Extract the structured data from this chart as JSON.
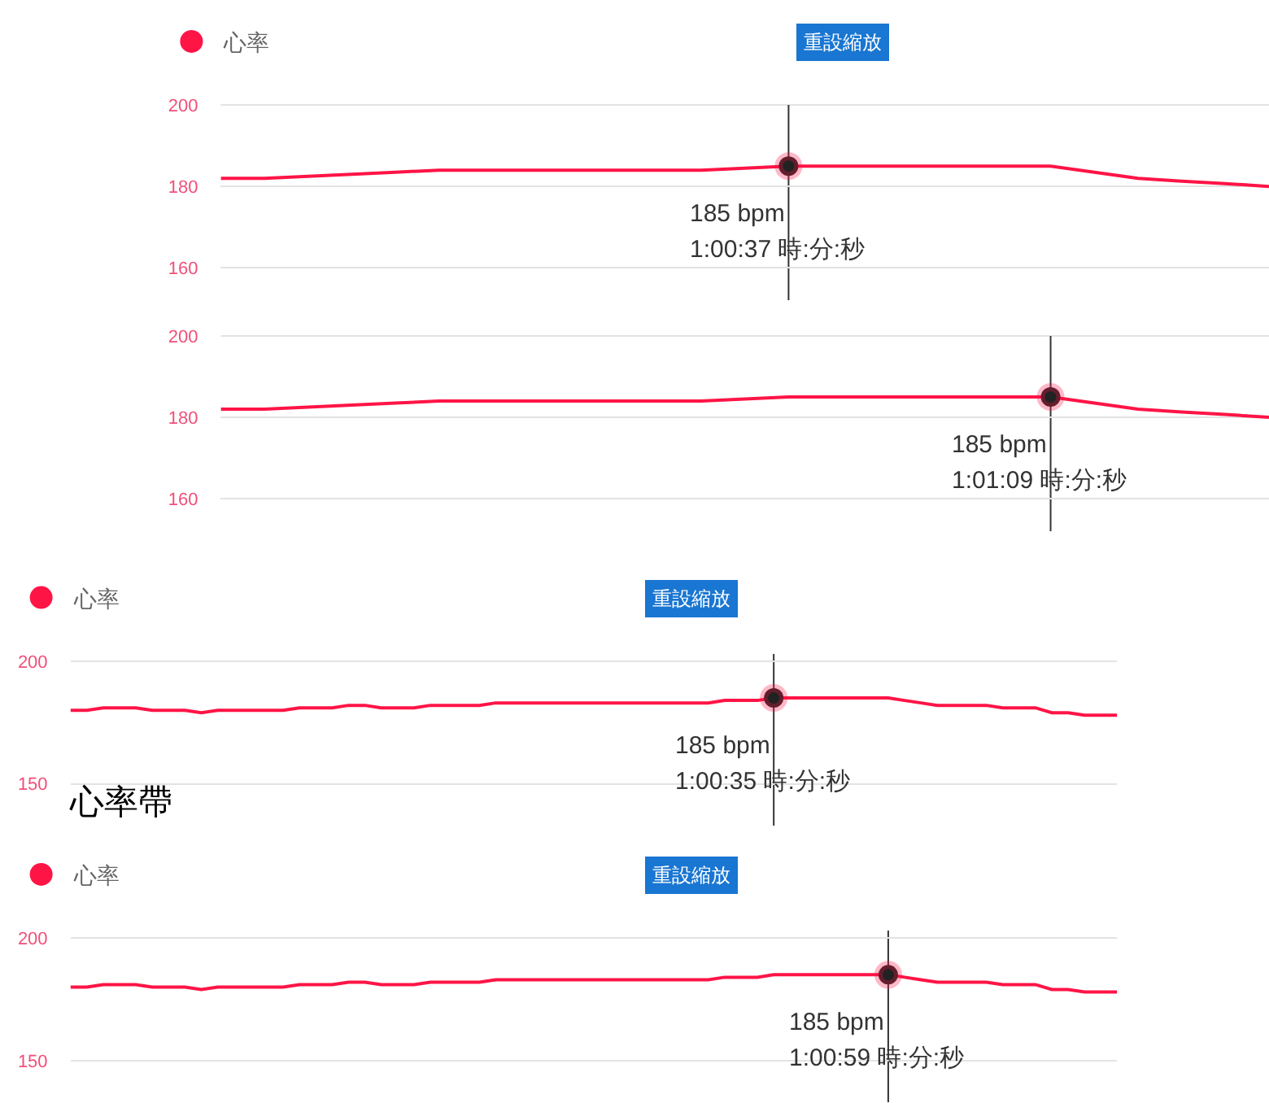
{
  "chart_data": [
    {
      "type": "line",
      "categories": [
        null,
        null,
        null,
        null,
        null,
        null,
        null,
        null,
        null,
        null,
        null,
        null,
        null,
        null,
        null,
        null,
        null,
        null,
        null,
        null,
        null,
        null,
        null,
        null,
        null
      ],
      "series": [
        {
          "name": "心率",
          "color": "#ff1446",
          "values": [
            182,
            182,
            182.5,
            183,
            183.5,
            184,
            184,
            184,
            184,
            184,
            184,
            184,
            184.5,
            185,
            185,
            185,
            185,
            185,
            185,
            185,
            183.5,
            182,
            181.3,
            180.7,
            180
          ]
        },
        {
          "type": "scatter",
          "marker": "circle",
          "color": "#222222",
          "values": [
            null,
            null,
            null,
            null,
            null,
            null,
            null,
            null,
            null,
            null,
            null,
            null,
            null,
            185,
            null,
            null,
            null,
            null,
            null,
            null,
            null,
            null,
            null,
            null,
            null
          ]
        }
      ],
      "ylim": [
        152,
        200
      ],
      "yticks": [
        160,
        180,
        200
      ],
      "grid": "y",
      "legend": "top left",
      "tick_labels": "y",
      "annotations": [
        "重設縮放",
        {
          "text": "185 bpm",
          "y": 185
        },
        "1:00:37 時:分:秒"
      ]
    },
    {
      "type": "line",
      "categories": [
        null,
        null,
        null,
        null,
        null,
        null,
        null,
        null,
        null,
        null,
        null,
        null,
        null,
        null,
        null,
        null,
        null,
        null,
        null,
        null,
        null,
        null,
        null,
        null,
        null
      ],
      "series": [
        {
          "color": "#ff1446",
          "values": [
            182,
            182,
            182.5,
            183,
            183.5,
            184,
            184,
            184,
            184,
            184,
            184,
            184,
            184.5,
            185,
            185,
            185,
            185,
            185,
            185,
            185,
            183.5,
            182,
            181.3,
            180.7,
            180
          ]
        },
        {
          "type": "scatter",
          "marker": "circle",
          "color": "#222222",
          "values": [
            null,
            null,
            null,
            null,
            null,
            null,
            null,
            null,
            null,
            null,
            null,
            null,
            null,
            null,
            null,
            null,
            null,
            null,
            null,
            185,
            null,
            null,
            null,
            null,
            null
          ]
        }
      ],
      "ylim": [
        152,
        200
      ],
      "yticks": [
        160,
        180,
        200
      ],
      "grid": "y",
      "tick_labels": "y",
      "annotations": [
        {
          "text": "185 bpm",
          "y": 185
        },
        "1:01:09 時:分:秒"
      ]
    },
    {
      "type": "line",
      "title": "心率帶",
      "categories": [
        null,
        null,
        null,
        null,
        null,
        null,
        null,
        null,
        null,
        null,
        null,
        null,
        null,
        null,
        null,
        null,
        null,
        null,
        null,
        null,
        null,
        null,
        null,
        null,
        null,
        null,
        null,
        null,
        null,
        null,
        null,
        null,
        null,
        null,
        null,
        null,
        null,
        null,
        null,
        null,
        null,
        null,
        null,
        null,
        null,
        null,
        null,
        null,
        null,
        null,
        null,
        null,
        null,
        null,
        null,
        null,
        null,
        null,
        null,
        null,
        null,
        null,
        null,
        null,
        null
      ],
      "series": [
        {
          "name": "心率",
          "color": "#ff1446",
          "values": [
            180,
            180,
            181,
            181,
            181,
            180,
            180,
            180,
            179,
            180,
            180,
            180,
            180,
            180,
            181,
            181,
            181,
            182,
            182,
            181,
            181,
            181,
            182,
            182,
            182,
            182,
            183,
            183,
            183,
            183,
            183,
            183,
            183,
            183,
            183,
            183,
            183,
            183,
            183,
            183,
            184,
            184,
            184,
            185,
            185,
            185,
            185,
            185,
            185,
            185,
            185,
            184,
            183,
            182,
            182,
            182,
            182,
            181,
            181,
            181,
            179,
            179,
            178,
            178,
            178
          ]
        },
        {
          "type": "scatter",
          "marker": "circle",
          "color": "#222222",
          "values": [
            null,
            null,
            null,
            null,
            null,
            null,
            null,
            null,
            null,
            null,
            null,
            null,
            null,
            null,
            null,
            null,
            null,
            null,
            null,
            null,
            null,
            null,
            null,
            null,
            null,
            null,
            null,
            null,
            null,
            null,
            null,
            null,
            null,
            null,
            null,
            null,
            null,
            null,
            null,
            null,
            null,
            null,
            null,
            185,
            null,
            null,
            null,
            null,
            null,
            null,
            null,
            null,
            null,
            null,
            null,
            null,
            null,
            null,
            null,
            null,
            null,
            null,
            null,
            null,
            null
          ]
        }
      ],
      "ylim": [
        133,
        203
      ],
      "yticks": [
        150,
        200
      ],
      "grid": "y",
      "legend": "top left",
      "tick_labels": "y",
      "annotations": [
        "重設縮放",
        {
          "text": "185 bpm",
          "y": 185
        },
        "1:00:35 時:分:秒"
      ]
    },
    {
      "type": "line",
      "categories": [
        null,
        null,
        null,
        null,
        null,
        null,
        null,
        null,
        null,
        null,
        null,
        null,
        null,
        null,
        null,
        null,
        null,
        null,
        null,
        null,
        null,
        null,
        null,
        null,
        null,
        null,
        null,
        null,
        null,
        null,
        null,
        null,
        null,
        null,
        null,
        null,
        null,
        null,
        null,
        null,
        null,
        null,
        null,
        null,
        null,
        null,
        null,
        null,
        null,
        null,
        null,
        null,
        null,
        null,
        null,
        null,
        null,
        null,
        null,
        null,
        null,
        null,
        null,
        null,
        null
      ],
      "series": [
        {
          "name": "心率",
          "color": "#ff1446",
          "values": [
            180,
            180,
            181,
            181,
            181,
            180,
            180,
            180,
            179,
            180,
            180,
            180,
            180,
            180,
            181,
            181,
            181,
            182,
            182,
            181,
            181,
            181,
            182,
            182,
            182,
            182,
            183,
            183,
            183,
            183,
            183,
            183,
            183,
            183,
            183,
            183,
            183,
            183,
            183,
            183,
            184,
            184,
            184,
            185,
            185,
            185,
            185,
            185,
            185,
            185,
            185,
            184,
            183,
            182,
            182,
            182,
            182,
            181,
            181,
            181,
            179,
            179,
            178,
            178,
            178
          ]
        },
        {
          "type": "scatter",
          "marker": "circle",
          "color": "#222222",
          "values": [
            null,
            null,
            null,
            null,
            null,
            null,
            null,
            null,
            null,
            null,
            null,
            null,
            null,
            null,
            null,
            null,
            null,
            null,
            null,
            null,
            null,
            null,
            null,
            null,
            null,
            null,
            null,
            null,
            null,
            null,
            null,
            null,
            null,
            null,
            null,
            null,
            null,
            null,
            null,
            null,
            null,
            null,
            null,
            null,
            null,
            null,
            null,
            null,
            null,
            null,
            185,
            null,
            null,
            null,
            null,
            null,
            null,
            null,
            null,
            null,
            null,
            null,
            null,
            null,
            null
          ]
        }
      ],
      "ylim": [
        133,
        203
      ],
      "yticks": [
        150,
        200
      ],
      "grid": "y",
      "legend": "top left",
      "tick_labels": "y",
      "annotations": [
        "重設縮放",
        {
          "text": "185 bpm",
          "y": 185
        },
        "1:00:59 時:分:秒"
      ]
    }
  ]
}
